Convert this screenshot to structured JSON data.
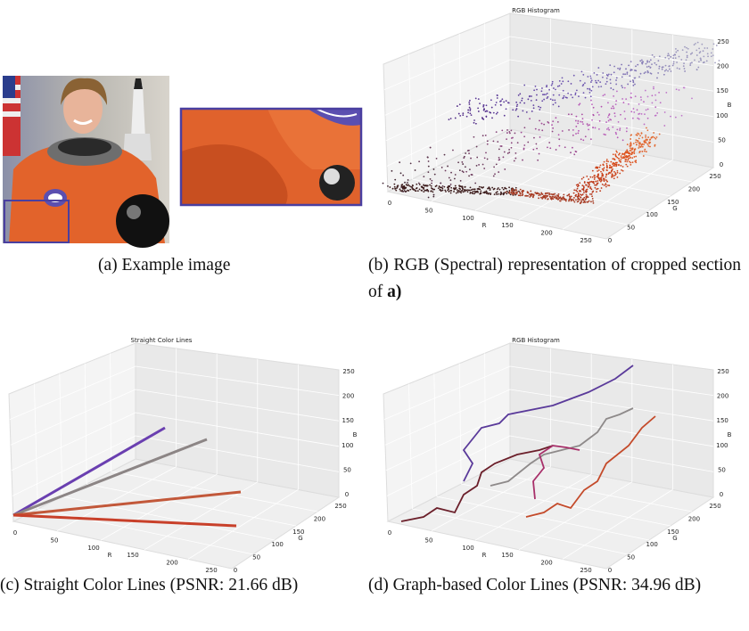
{
  "panels": [
    {
      "caption": "(a) Example image"
    },
    {
      "title": "RGB Histogram",
      "caption": "(b) RGB (Spectral) representation of cropped section of",
      "caption_bold": "a)",
      "x_label": "R",
      "y_label": "G",
      "z_label": "B",
      "r_ticks": [
        0,
        50,
        100,
        150,
        200,
        250
      ],
      "g_ticks": [
        0,
        50,
        100,
        150,
        200,
        250
      ],
      "b_ticks": [
        0,
        50,
        100,
        150,
        200,
        250
      ]
    },
    {
      "title": "Straight Color Lines",
      "caption": "(c) Straight Color Lines (PSNR: 21.66 dB)",
      "x_label": "R",
      "y_label": "G",
      "z_label": "B",
      "r_ticks": [
        0,
        50,
        100,
        150,
        200,
        250
      ],
      "g_ticks": [
        0,
        50,
        100,
        150,
        200,
        250
      ],
      "b_ticks": [
        0,
        50,
        100,
        150,
        200,
        250
      ]
    },
    {
      "title": "RGB Histogram",
      "caption": "(d) Graph-based Color Lines (PSNR: 34.96 dB)",
      "x_label": "R",
      "y_label": "G",
      "z_label": "B",
      "r_ticks": [
        0,
        50,
        100,
        150,
        200,
        250
      ],
      "g_ticks": [
        0,
        50,
        100,
        150,
        200,
        250
      ],
      "b_ticks": [
        0,
        50,
        100,
        150,
        200,
        250
      ]
    }
  ]
}
